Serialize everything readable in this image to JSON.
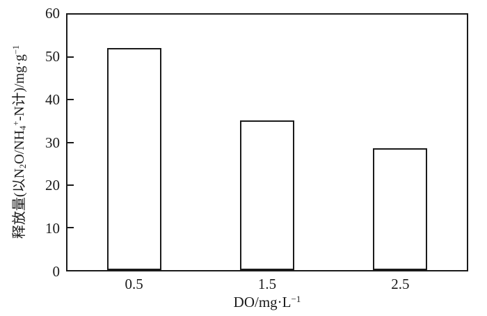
{
  "chart_data": {
    "type": "bar",
    "categories": [
      "0.5",
      "1.5",
      "2.5"
    ],
    "values": [
      51.7,
      34.7,
      28.1
    ],
    "title": "",
    "xlabel": "DO/mg·L⁻¹",
    "ylabel": "释放量(以N₂O/NH₄⁺-N计)/mg·g⁻¹",
    "ylim": [
      0,
      60
    ],
    "yticks": [
      0,
      10,
      20,
      30,
      40,
      50,
      60
    ],
    "grid": false,
    "legend": "none",
    "bar_fill": "#ffffff",
    "bar_border": "#1a1a1a",
    "axis_color": "#1a1a1a",
    "background": "#ffffff",
    "text_color": "#1a1a1a"
  },
  "labels": {
    "ylabel_segments": [
      {
        "text": "释放量(以N",
        "script": "normal"
      },
      {
        "text": "2",
        "script": "sub"
      },
      {
        "text": "O/NH",
        "script": "normal"
      },
      {
        "text": "4",
        "script": "sub"
      },
      {
        "text": "+",
        "script": "sup"
      },
      {
        "text": "-N计)/mg·g",
        "script": "normal"
      },
      {
        "text": "−1",
        "script": "sup"
      }
    ],
    "xlabel_segments": [
      {
        "text": "DO/mg·L",
        "script": "normal"
      },
      {
        "text": "−1",
        "script": "sup"
      }
    ]
  }
}
